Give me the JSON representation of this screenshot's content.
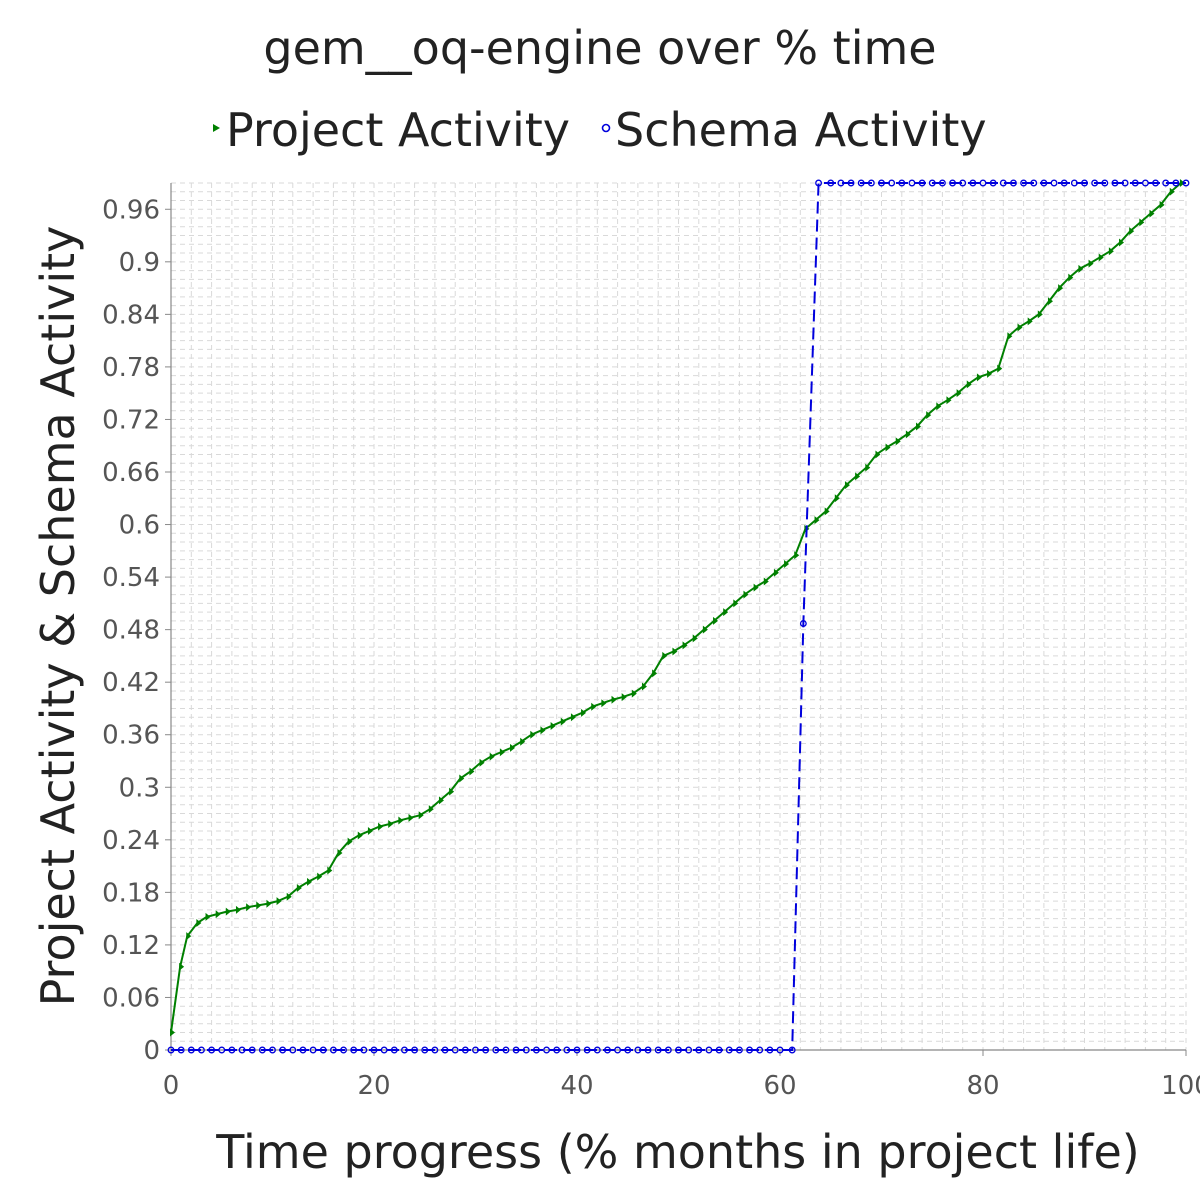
{
  "chart_data": {
    "type": "line",
    "title": "gem__oq-engine over % time",
    "xlabel": "Time progress (% months in project life)",
    "ylabel": "Project Activity & Schema Activity",
    "xlim": [
      0,
      100
    ],
    "ylim": [
      0,
      0.99
    ],
    "x_ticks": [
      "0",
      "20",
      "40",
      "60",
      "80",
      "100"
    ],
    "y_ticks": [
      "0",
      "0.06",
      "0.12",
      "0.18",
      "0.24",
      "0.3",
      "0.36",
      "0.42",
      "0.48",
      "0.54",
      "0.6",
      "0.66",
      "0.72",
      "0.78",
      "0.84",
      "0.9",
      "0.96"
    ],
    "grid": true,
    "legend_position": "top",
    "series": [
      {
        "name": "Project Activity",
        "color": "#008000",
        "line_style": "solid",
        "marker": "triangle-right",
        "x": [
          0,
          0.9,
          1.6,
          2.6,
          3.5,
          4.5,
          5.5,
          6.5,
          7.5,
          8.5,
          9.5,
          10.5,
          11.5,
          12.5,
          13.5,
          14.5,
          15.5,
          16.5,
          17.5,
          18.5,
          19.5,
          20.5,
          21.5,
          22.5,
          23.5,
          24.5,
          25.5,
          26.5,
          27.5,
          28.5,
          29.5,
          30.5,
          31.5,
          32.5,
          33.5,
          34.5,
          35.5,
          36.5,
          37.5,
          38.5,
          39.5,
          40.5,
          41.5,
          42.5,
          43.5,
          44.5,
          45.5,
          46.5,
          47.5,
          48.5,
          49.5,
          50.5,
          51.5,
          52.5,
          53.5,
          54.5,
          55.5,
          56.5,
          57.5,
          58.5,
          59.5,
          60.5,
          61.5,
          62.5,
          63.5,
          64.5,
          65.5,
          66.5,
          67.5,
          68.5,
          69.5,
          70.5,
          71.5,
          72.5,
          73.5,
          74.5,
          75.5,
          76.5,
          77.5,
          78.5,
          79.5,
          80.5,
          81.5,
          82.5,
          83.5,
          84.5,
          85.5,
          86.5,
          87.5,
          88.5,
          89.5,
          90.5,
          91.5,
          92.5,
          93.5,
          94.5,
          95.5,
          96.5,
          97.5,
          98.5,
          99.5
        ],
        "y": [
          0.02,
          0.095,
          0.13,
          0.145,
          0.152,
          0.155,
          0.158,
          0.16,
          0.163,
          0.165,
          0.167,
          0.17,
          0.175,
          0.185,
          0.192,
          0.198,
          0.205,
          0.225,
          0.238,
          0.245,
          0.25,
          0.255,
          0.258,
          0.262,
          0.265,
          0.268,
          0.275,
          0.285,
          0.295,
          0.31,
          0.318,
          0.328,
          0.335,
          0.34,
          0.345,
          0.352,
          0.36,
          0.365,
          0.37,
          0.375,
          0.38,
          0.385,
          0.392,
          0.396,
          0.4,
          0.403,
          0.407,
          0.415,
          0.43,
          0.45,
          0.455,
          0.462,
          0.47,
          0.48,
          0.49,
          0.5,
          0.51,
          0.52,
          0.528,
          0.535,
          0.545,
          0.555,
          0.565,
          0.595,
          0.605,
          0.615,
          0.63,
          0.645,
          0.655,
          0.665,
          0.68,
          0.688,
          0.695,
          0.703,
          0.712,
          0.725,
          0.735,
          0.742,
          0.75,
          0.76,
          0.768,
          0.772,
          0.778,
          0.815,
          0.825,
          0.832,
          0.84,
          0.855,
          0.87,
          0.882,
          0.892,
          0.898,
          0.905,
          0.912,
          0.922,
          0.935,
          0.945,
          0.955,
          0.965,
          0.98,
          0.99
        ]
      },
      {
        "name": "Schema Activity",
        "color": "#0000dd",
        "line_style": "dashed",
        "marker": "circle",
        "x": [
          0,
          1,
          2,
          3,
          4,
          5,
          6,
          7,
          8,
          9,
          10,
          11,
          12,
          13,
          14,
          15,
          16,
          17,
          18,
          19,
          20,
          21,
          22,
          23,
          24,
          25,
          26,
          27,
          28,
          29,
          30,
          31,
          32,
          33,
          34,
          35,
          36,
          37,
          38,
          39,
          40,
          41,
          42,
          43,
          44,
          45,
          46,
          47,
          48,
          49,
          50,
          51,
          52,
          53,
          54,
          55,
          56,
          57,
          58,
          59,
          60,
          61.2,
          62.3,
          63.8,
          65,
          66,
          67,
          68,
          69,
          70,
          71,
          72,
          73,
          74,
          75,
          76,
          77,
          78,
          79,
          80,
          81,
          82,
          83,
          84,
          85,
          86,
          87,
          88,
          89,
          90,
          91,
          92,
          93,
          94,
          95,
          96,
          97,
          98,
          99,
          100
        ],
        "y": [
          0,
          0,
          0,
          0,
          0,
          0,
          0,
          0,
          0,
          0,
          0,
          0,
          0,
          0,
          0,
          0,
          0,
          0,
          0,
          0,
          0,
          0,
          0,
          0,
          0,
          0,
          0,
          0,
          0,
          0,
          0,
          0,
          0,
          0,
          0,
          0,
          0,
          0,
          0,
          0,
          0,
          0,
          0,
          0,
          0,
          0,
          0,
          0,
          0,
          0,
          0,
          0,
          0,
          0,
          0,
          0,
          0,
          0,
          0,
          0,
          0,
          0,
          0.487,
          0.99,
          0.99,
          0.99,
          0.99,
          0.99,
          0.99,
          0.99,
          0.99,
          0.99,
          0.99,
          0.99,
          0.99,
          0.99,
          0.99,
          0.99,
          0.99,
          0.99,
          0.99,
          0.99,
          0.99,
          0.99,
          0.99,
          0.99,
          0.99,
          0.99,
          0.99,
          0.99,
          0.99,
          0.99,
          0.99,
          0.99,
          0.99,
          0.99,
          0.99,
          0.99,
          0.99,
          0.99
        ]
      }
    ]
  }
}
